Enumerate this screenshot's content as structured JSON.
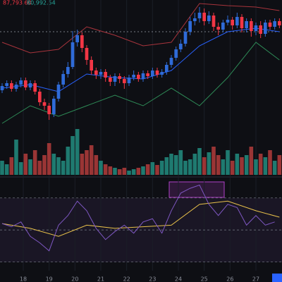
{
  "chart_data": {
    "type": "candlestick",
    "annotations": [
      "87,793.60",
      "80,992.54"
    ],
    "x": [
      0,
      1,
      2,
      3,
      4,
      5,
      6,
      7,
      8,
      9,
      10,
      11,
      12,
      13,
      14,
      15,
      16,
      17,
      18,
      19,
      20,
      21,
      22,
      23,
      24,
      25,
      26,
      27,
      28,
      29,
      30,
      31,
      32,
      33,
      34,
      35,
      36,
      37,
      38,
      39,
      40,
      41,
      42,
      43,
      44,
      45,
      46,
      47,
      48,
      49,
      50,
      51,
      52,
      53,
      54,
      55,
      56,
      57,
      58,
      59
    ],
    "xlim": [
      -0.45,
      59.55
    ],
    "xticks": [
      {
        "value": 4.5,
        "label": "18"
      },
      {
        "value": 10,
        "label": "19"
      },
      {
        "value": 15.5,
        "label": "20"
      },
      {
        "value": 21,
        "label": "21"
      },
      {
        "value": 26.5,
        "label": "22"
      },
      {
        "value": 32,
        "label": "23"
      },
      {
        "value": 37.5,
        "label": "24"
      },
      {
        "value": 43,
        "label": "25"
      },
      {
        "value": 48.5,
        "label": "26"
      },
      {
        "value": 54,
        "label": "27"
      }
    ],
    "ylim": [
      80000,
      98000
    ],
    "open": [
      85200,
      85800,
      86200,
      85400,
      86000,
      86600,
      85600,
      86200,
      85000,
      83500,
      83000,
      81800,
      84000,
      86000,
      87500,
      88500,
      92000,
      93000,
      91200,
      89500,
      88000,
      87400,
      87800,
      87000,
      86400,
      87200,
      86800,
      86200,
      87000,
      87400,
      86800,
      87600,
      87200,
      88000,
      87400,
      87800,
      88800,
      89800,
      91000,
      91800,
      93500,
      95000,
      95400,
      96200,
      95000,
      95800,
      94200,
      93800,
      94800,
      95200,
      94400,
      95600,
      94000,
      95000,
      93600,
      94400,
      93200,
      94800,
      94200,
      95000
    ],
    "high": [
      86200,
      86600,
      86600,
      86400,
      87000,
      87000,
      86600,
      86600,
      85400,
      84000,
      83400,
      84400,
      86400,
      88000,
      89200,
      93600,
      93800,
      93400,
      91600,
      90000,
      88400,
      88200,
      88200,
      87400,
      87600,
      87600,
      87200,
      87400,
      88000,
      87800,
      88000,
      88000,
      88400,
      88400,
      88200,
      89200,
      90200,
      91400,
      92400,
      94000,
      95600,
      96200,
      97000,
      96800,
      96400,
      96200,
      94800,
      95200,
      95800,
      95600,
      96200,
      96000,
      95400,
      95400,
      94800,
      95000,
      95200,
      95200,
      95400,
      95400
    ],
    "low": [
      84800,
      85400,
      85000,
      85000,
      85600,
      85200,
      85200,
      84600,
      83000,
      82400,
      81000,
      81400,
      83600,
      85600,
      87000,
      88200,
      91400,
      90600,
      88800,
      87400,
      86800,
      86800,
      86400,
      85800,
      85800,
      86200,
      85400,
      85800,
      86600,
      86400,
      86400,
      86800,
      86800,
      87000,
      87000,
      87400,
      88400,
      89400,
      90600,
      91400,
      93000,
      94400,
      94800,
      94400,
      94600,
      93600,
      93000,
      93400,
      94400,
      93800,
      94000,
      93400,
      93400,
      92800,
      93000,
      92600,
      92800,
      93800,
      93800,
      94000
    ],
    "close": [
      85800,
      86200,
      85400,
      86000,
      86600,
      85600,
      86200,
      85000,
      83500,
      83000,
      81800,
      84000,
      86000,
      87500,
      88500,
      92000,
      93000,
      91200,
      89500,
      88000,
      87400,
      87800,
      87000,
      86400,
      87200,
      86800,
      86200,
      87000,
      87400,
      86800,
      87600,
      87200,
      88000,
      87400,
      87800,
      88800,
      89800,
      91000,
      91800,
      93500,
      95000,
      95400,
      96200,
      95000,
      95800,
      94200,
      93800,
      94800,
      95200,
      94400,
      95600,
      94000,
      95000,
      93600,
      94400,
      93200,
      94800,
      94200,
      95000,
      94400
    ],
    "up_color": "#2f6bd8",
    "down_color": "#f23645",
    "price_line": 93500,
    "overlays": [
      {
        "color": "#a8343c",
        "x": [
          0,
          6,
          12,
          18,
          24,
          30,
          36,
          42,
          48,
          54,
          59
        ],
        "values": [
          92000,
          90500,
          91000,
          94200,
          93000,
          91500,
          92000,
          97500,
          97200,
          97000,
          96500
        ]
      },
      {
        "color": "#2962ff",
        "x": [
          0,
          6,
          12,
          18,
          24,
          30,
          36,
          42,
          48,
          54,
          59
        ],
        "values": [
          85500,
          86000,
          85000,
          87500,
          87000,
          86800,
          88000,
          91500,
          93500,
          94000,
          93500
        ]
      },
      {
        "color": "#2e8b57",
        "x": [
          0,
          6,
          12,
          18,
          24,
          30,
          36,
          42,
          48,
          54,
          59
        ],
        "values": [
          80500,
          83000,
          81500,
          83000,
          84500,
          83000,
          85500,
          83000,
          87000,
          92000,
          89500
        ]
      }
    ],
    "volume": {
      "values": [
        20,
        15,
        25,
        50,
        18,
        30,
        22,
        35,
        20,
        28,
        45,
        30,
        25,
        20,
        40,
        55,
        65,
        30,
        35,
        42,
        28,
        20,
        15,
        12,
        10,
        8,
        10,
        6,
        8,
        10,
        12,
        15,
        18,
        14,
        20,
        25,
        30,
        28,
        35,
        20,
        22,
        30,
        38,
        25,
        32,
        40,
        28,
        22,
        35,
        20,
        30,
        25,
        28,
        40,
        22,
        30,
        25,
        35,
        20,
        28
      ],
      "ylim": [
        0,
        70
      ],
      "up_color": "#1f7a70",
      "down_color": "#9a3535"
    },
    "rsi": {
      "x": [
        0,
        2,
        4,
        6,
        8,
        10,
        12,
        14,
        16,
        18,
        20,
        22,
        24,
        26,
        28,
        30,
        32,
        34,
        36,
        38,
        40,
        42,
        44,
        46,
        48,
        50,
        52,
        54,
        56,
        58
      ],
      "values": [
        54,
        52,
        55,
        46,
        42,
        37,
        53,
        59,
        68,
        62,
        51,
        44,
        49,
        53,
        48,
        55,
        57,
        48,
        62,
        73,
        76,
        78,
        66,
        59,
        66,
        64,
        53,
        59,
        53,
        55
      ],
      "color": "#7e57c2",
      "ylim": [
        25,
        80
      ],
      "levels": [
        30,
        50,
        70
      ],
      "ma": {
        "x": [
          0,
          6,
          12,
          18,
          24,
          30,
          36,
          42,
          48,
          54,
          59
        ],
        "values": [
          54,
          51,
          46,
          53,
          51,
          52,
          53,
          66,
          68,
          62,
          58
        ],
        "color": "#e8c14a"
      }
    }
  }
}
